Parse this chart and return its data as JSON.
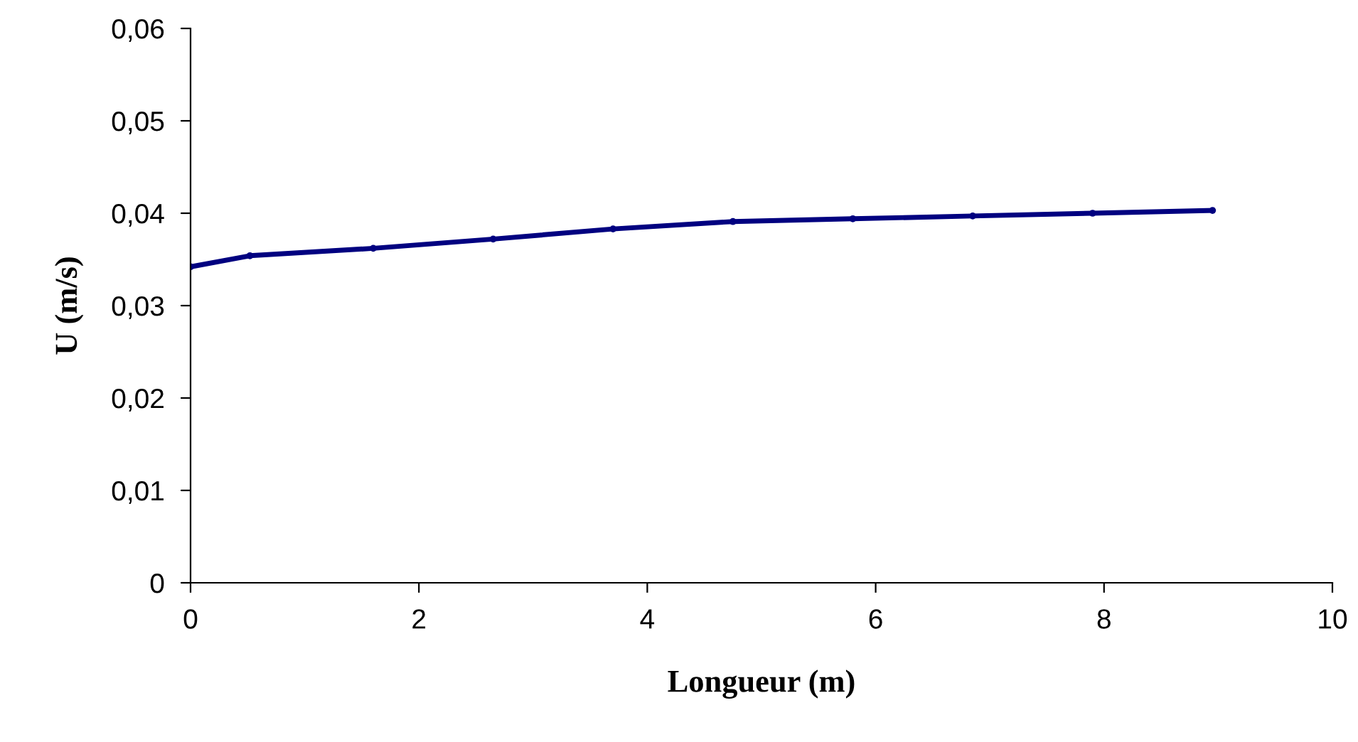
{
  "chart_data": {
    "type": "line",
    "xlabel": "Longueur (m)",
    "ylabel": "U (m/s)",
    "series": [
      {
        "color": "#000080",
        "x": [
          0,
          0.52,
          1.6,
          2.65,
          3.7,
          4.75,
          5.8,
          6.85,
          7.9,
          8.95
        ],
        "values": [
          0.0342,
          0.0354,
          0.0362,
          0.0372,
          0.0383,
          0.0391,
          0.0394,
          0.0397,
          0.04,
          0.0403
        ]
      }
    ],
    "xlim": [
      0,
      10
    ],
    "xticks": [
      0,
      2,
      4,
      6,
      8,
      10
    ],
    "ylim": [
      0,
      0.06
    ],
    "yticks": [
      0,
      {
        "value": 0.01,
        "label": "0,01"
      },
      {
        "value": 0.02,
        "label": "0,02"
      },
      {
        "value": 0.03,
        "label": "0,03"
      },
      {
        "value": 0.04,
        "label": "0,04"
      },
      {
        "value": 0.05,
        "label": "0,05"
      },
      {
        "value": 0.06,
        "label": "0,06"
      }
    ],
    "grid": false,
    "legend": false,
    "marker": "circle",
    "line_style": "solid"
  }
}
